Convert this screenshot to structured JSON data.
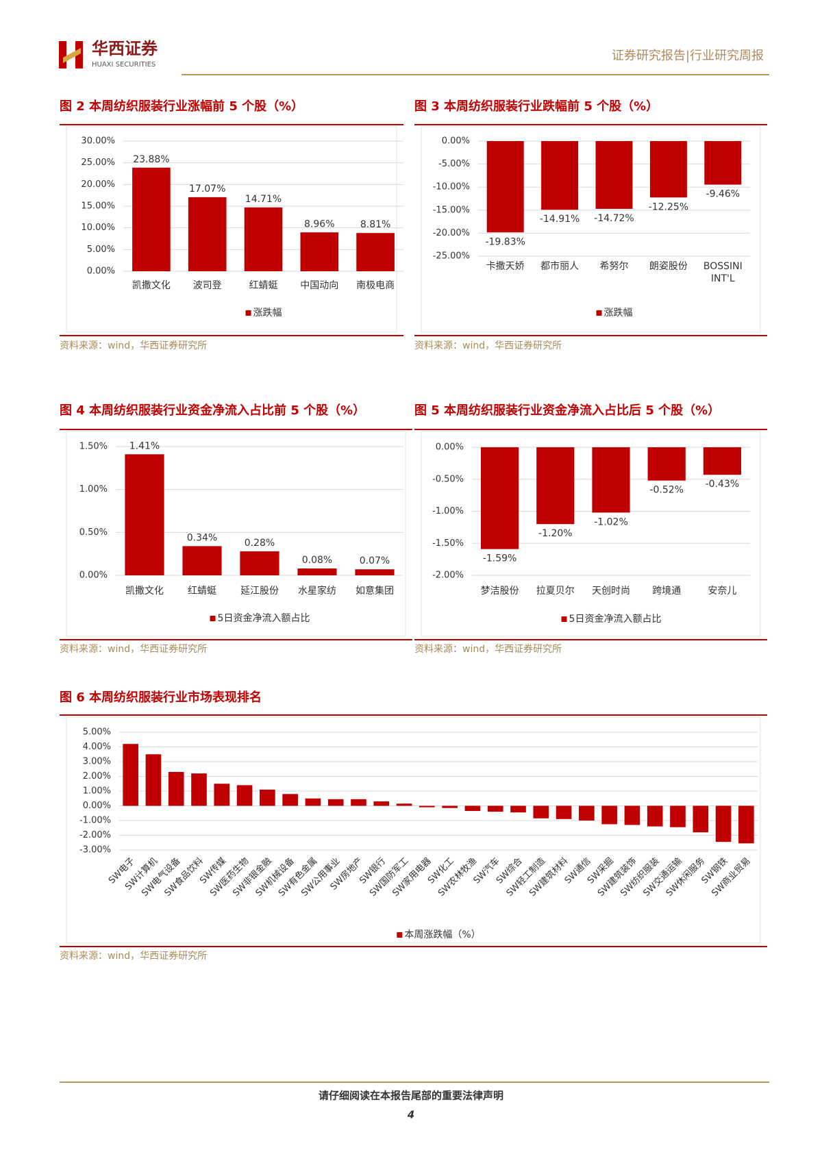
{
  "header": {
    "brand": "华西证券",
    "brand_en": "HUAXI SECURITIES",
    "report_type": "证券研究报告|行业研究周报"
  },
  "figures": [
    {
      "title": "图 2 本周纺织服装行业涨幅前 5 个股（%）",
      "source": "资料来源：wind，华西证券研究所",
      "chart": {
        "type": "bar",
        "categories": [
          "凯撒文化",
          "波司登",
          "红蜻蜓",
          "中国动向",
          "南极电商"
        ],
        "values": [
          23.88,
          17.07,
          14.71,
          8.96,
          8.81
        ],
        "value_labels": [
          "23.88%",
          "17.07%",
          "14.71%",
          "8.96%",
          "8.81%"
        ],
        "legend": "涨跌幅",
        "color": "#c00000",
        "ylim": [
          0,
          30
        ],
        "yticks": [
          {
            "value": 0,
            "label": "0.00%"
          },
          {
            "value": 5,
            "label": "5.00%"
          },
          {
            "value": 10,
            "label": "10.00%"
          },
          {
            "value": 15,
            "label": "15.00%"
          },
          {
            "value": 20,
            "label": "20.00%"
          },
          {
            "value": 25,
            "label": "25.00%"
          },
          {
            "value": 30,
            "label": "30.00%"
          }
        ]
      }
    },
    {
      "title": "图 3 本周纺织服装行业跌幅前 5 个股（%）",
      "source": "资料来源：wind，华西证券研究所",
      "chart": {
        "type": "bar",
        "categories": [
          "卡撒天娇",
          "都市丽人",
          "希努尔",
          "朗姿股份",
          "BOSSINI INT'L"
        ],
        "values": [
          -19.83,
          -14.91,
          -14.72,
          -12.25,
          -9.46
        ],
        "value_labels": [
          "-19.83%",
          "-14.91%",
          "-14.72%",
          "-12.25%",
          "-9.46%"
        ],
        "legend": "涨跌幅",
        "color": "#c00000",
        "ylim": [
          -25,
          0
        ],
        "yticks": [
          {
            "value": 0,
            "label": "0.00%"
          },
          {
            "value": -5,
            "label": "-5.00%"
          },
          {
            "value": -10,
            "label": "-10.00%"
          },
          {
            "value": -15,
            "label": "-15.00%"
          },
          {
            "value": -20,
            "label": "-20.00%"
          },
          {
            "value": -25,
            "label": "-25.00%"
          }
        ]
      }
    },
    {
      "title": "图 4 本周纺织服装行业资金净流入占比前 5 个股（%）",
      "source": "资料来源：wind，华西证券研究所",
      "chart": {
        "type": "bar",
        "categories": [
          "凯撒文化",
          "红蜻蜓",
          "延江股份",
          "水星家纺",
          "如意集团"
        ],
        "values": [
          1.41,
          0.34,
          0.28,
          0.08,
          0.07
        ],
        "value_labels": [
          "1.41%",
          "0.34%",
          "0.28%",
          "0.08%",
          "0.07%"
        ],
        "legend": "5日资金净流入额占比",
        "color": "#c00000",
        "ylim": [
          0,
          1.5
        ],
        "yticks": [
          {
            "value": 0,
            "label": "0.00%"
          },
          {
            "value": 0.5,
            "label": "0.50%"
          },
          {
            "value": 1,
            "label": "1.00%"
          },
          {
            "value": 1.5,
            "label": "1.50%"
          }
        ]
      }
    },
    {
      "title": "图 5 本周纺织服装行业资金净流入占比后 5 个股（%）",
      "source": "资料来源：wind，华西证券研究所",
      "chart": {
        "type": "bar",
        "categories": [
          "梦洁股份",
          "拉夏贝尔",
          "天创时尚",
          "跨境通",
          "安奈儿"
        ],
        "values": [
          -1.59,
          -1.2,
          -1.02,
          -0.52,
          -0.43
        ],
        "value_labels": [
          "-1.59%",
          "-1.20%",
          "-1.02%",
          "-0.52%",
          "-0.43%"
        ],
        "legend": "5日资金净流入额占比",
        "color": "#c00000",
        "ylim": [
          -2,
          0
        ],
        "yticks": [
          {
            "value": 0,
            "label": "0.00%"
          },
          {
            "value": -0.5,
            "label": "-0.50%"
          },
          {
            "value": -1,
            "label": "-1.00%"
          },
          {
            "value": -1.5,
            "label": "-1.50%"
          },
          {
            "value": -2,
            "label": "-2.00%"
          }
        ]
      }
    },
    {
      "title": "图 6 本周纺织服装行业市场表现排名",
      "source": "资料来源：wind，华西证券研究所",
      "chart": {
        "type": "bar",
        "categories": [
          "SW电子",
          "SW计算机",
          "SW电气设备",
          "SW食品饮料",
          "SW传媒",
          "SW医药生物",
          "SW非银金融",
          "SW机械设备",
          "SW有色金属",
          "SW公用事业",
          "SW房地产",
          "SW银行",
          "SW国防军工",
          "SW家用电器",
          "SW化工",
          "SW农林牧渔",
          "SW汽车",
          "SW综合",
          "SW轻工制造",
          "SW建筑材料",
          "SW通信",
          "SW采掘",
          "SW建筑装饰",
          "SW纺织服装",
          "SW交通运输",
          "SW休闲服务",
          "SW钢铁",
          "SW商业贸易"
        ],
        "values": [
          4.2,
          3.5,
          2.3,
          2.2,
          1.5,
          1.4,
          1.1,
          0.8,
          0.5,
          0.45,
          0.45,
          0.3,
          0.15,
          -0.1,
          -0.15,
          -0.35,
          -0.4,
          -0.45,
          -0.85,
          -0.9,
          -1.0,
          -1.25,
          -1.3,
          -1.4,
          -1.45,
          -1.8,
          -2.45,
          -2.55
        ],
        "legend": "本周涨跌幅（%）",
        "color": "#c00000",
        "ylim": [
          -3,
          5
        ],
        "yticks": [
          {
            "value": -3,
            "label": "-3.00%"
          },
          {
            "value": -2,
            "label": "-2.00%"
          },
          {
            "value": -1,
            "label": "-1.00%"
          },
          {
            "value": 0,
            "label": "0.00%"
          },
          {
            "value": 1,
            "label": "1.00%"
          },
          {
            "value": 2,
            "label": "2.00%"
          },
          {
            "value": 3,
            "label": "3.00%"
          },
          {
            "value": 4,
            "label": "4.00%"
          },
          {
            "value": 5,
            "label": "5.00%"
          }
        ]
      }
    }
  ],
  "footer": {
    "disclaimer": "请仔细阅读在本报告尾部的重要法律声明",
    "page": "4"
  }
}
